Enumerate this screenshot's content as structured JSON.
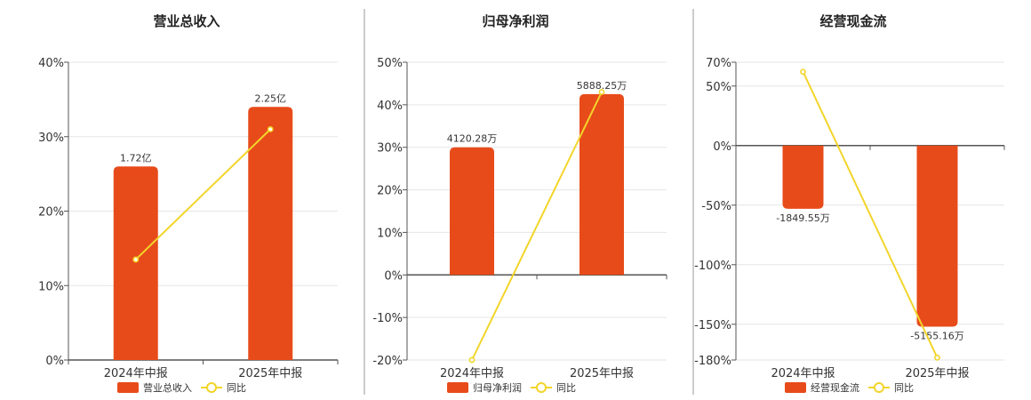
{
  "colors": {
    "bar": "#e84b1a",
    "line": "#f2d52a",
    "grid": "#e6e6e6",
    "axis": "#555555",
    "divider": "#999999"
  },
  "chart_data": [
    {
      "type": "bar",
      "title": "营业总收入",
      "categories": [
        "2024年中报",
        "2025年中报"
      ],
      "series": [
        {
          "name": "营业总收入",
          "type": "bar",
          "values": [
            26,
            34
          ],
          "labels": [
            "1.72亿",
            "2.25亿"
          ]
        },
        {
          "name": "同比",
          "type": "line",
          "values": [
            13.5,
            31
          ]
        }
      ],
      "ylim": [
        0,
        40
      ],
      "yticks": [
        "40%",
        "30%",
        "20%",
        "10%",
        "0%"
      ],
      "ytick_values": [
        40,
        30,
        20,
        10,
        0
      ],
      "grid": true,
      "legend": "bottom"
    },
    {
      "type": "bar",
      "title": "归母净利润",
      "categories": [
        "2024年中报",
        "2025年中报"
      ],
      "series": [
        {
          "name": "归母净利润",
          "type": "bar",
          "values": [
            30,
            42.5
          ],
          "labels": [
            "4120.28万",
            "5888.25万"
          ]
        },
        {
          "name": "同比",
          "type": "line",
          "values": [
            -20,
            43
          ]
        }
      ],
      "ylim": [
        -20,
        50
      ],
      "yticks": [
        "50%",
        "40%",
        "30%",
        "20%",
        "10%",
        "0%",
        "-10%",
        "-20%"
      ],
      "ytick_values": [
        50,
        40,
        30,
        20,
        10,
        0,
        -10,
        -20
      ],
      "grid": true,
      "legend": "bottom"
    },
    {
      "type": "bar",
      "title": "经营现金流",
      "categories": [
        "2024年中报",
        "2025年中报"
      ],
      "series": [
        {
          "name": "经营现金流",
          "type": "bar",
          "values": [
            -53,
            -152
          ],
          "labels": [
            "-1849.55万",
            "-5155.16万"
          ]
        },
        {
          "name": "同比",
          "type": "line",
          "values": [
            62,
            -178
          ]
        }
      ],
      "ylim": [
        -180,
        70
      ],
      "yticks": [
        "70%",
        "50%",
        "0%",
        "-50%",
        "-100%",
        "-150%",
        "-180%"
      ],
      "ytick_values": [
        70,
        50,
        0,
        -50,
        -100,
        -150,
        -180
      ],
      "grid": true,
      "legend": "bottom"
    }
  ]
}
